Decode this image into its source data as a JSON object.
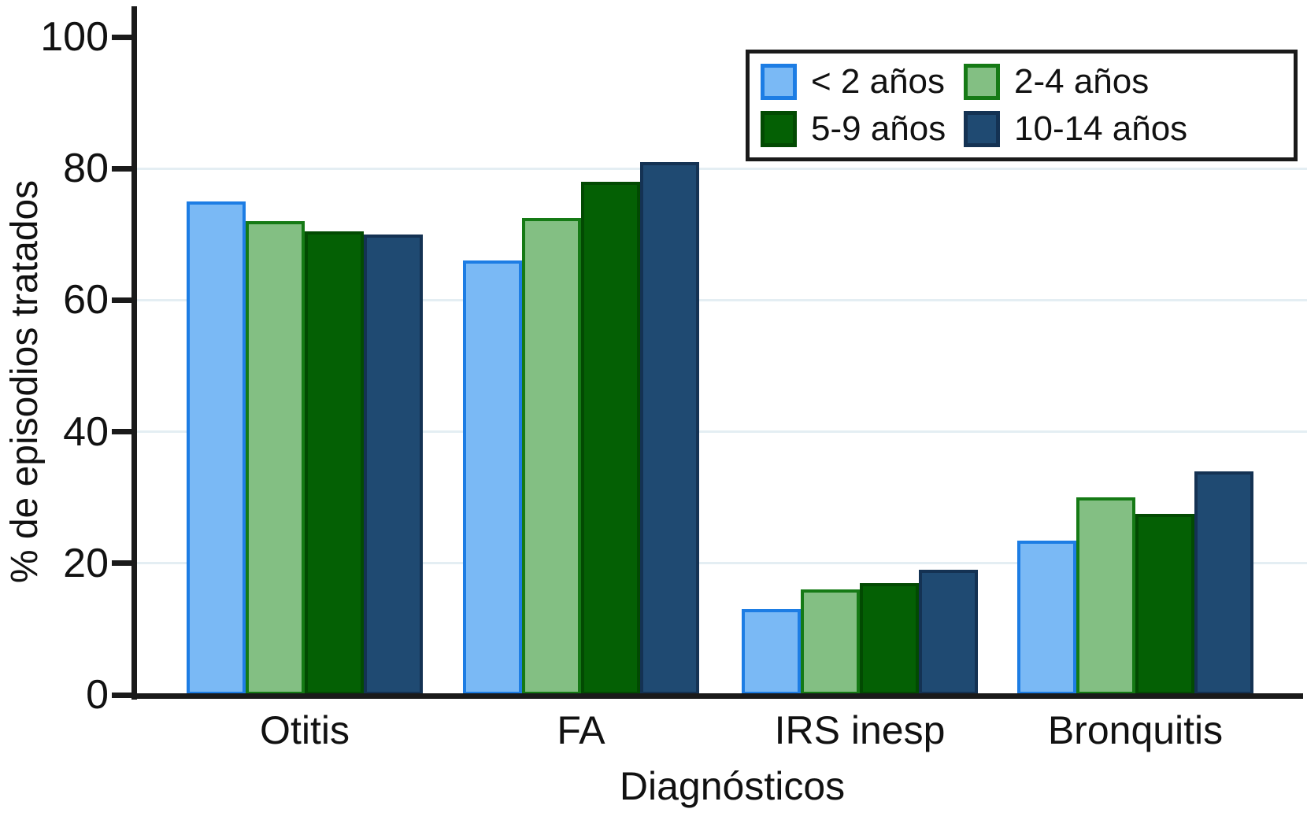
{
  "chart_data": {
    "type": "bar",
    "title": "",
    "categories": [
      "Otitis",
      "FA",
      "IRS inesp",
      "Bronquitis"
    ],
    "series": [
      {
        "name": "< 2 años",
        "values": [
          75,
          66,
          13,
          23.5
        ],
        "fill": "#7ab9f5",
        "border": "#1d7de4"
      },
      {
        "name": "2-4 años",
        "values": [
          72,
          72.5,
          16,
          30
        ],
        "fill": "#83bf83",
        "border": "#157a15"
      },
      {
        "name": "5-9 años",
        "values": [
          70.5,
          78,
          17,
          27.5
        ],
        "fill": "#046004",
        "border": "#024a02"
      },
      {
        "name": "10-14 años",
        "values": [
          70,
          81,
          19,
          34
        ],
        "fill": "#1f4a72",
        "border": "#143253"
      }
    ],
    "xlabel": "Diagnósticos",
    "ylabel": "% de episodios tratados",
    "ylim": [
      0,
      100
    ],
    "yticks": [
      0,
      20,
      40,
      60,
      80,
      100
    ],
    "gridlines_at": [
      20,
      40,
      60,
      80
    ],
    "grid": "horizontal",
    "legend_position": "top-right-inside",
    "axis_color": "#1a1a1a",
    "gridline_color": "#e4eef3",
    "background": "#ffffff"
  }
}
